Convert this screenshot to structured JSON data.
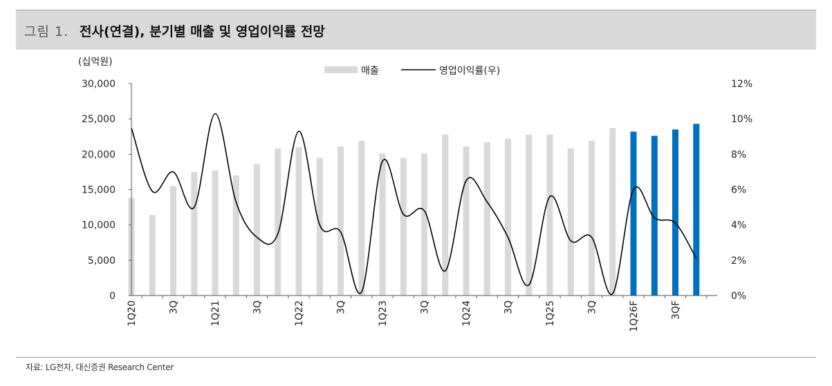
{
  "header": {
    "figure_number": "그림 1.",
    "title": "전사(연결), 분기별 매출 및 영업이익률 전망"
  },
  "source": "자료: LG전자, 대신증권 Research Center",
  "chart_data": {
    "type": "bar",
    "unit_left": "(십억원)",
    "legend": [
      {
        "name": "매출",
        "kind": "bar",
        "color": "#d9d9d9"
      },
      {
        "name": "영업이익률(우)",
        "kind": "line",
        "color": "#000000"
      }
    ],
    "x_tick_labels": [
      "1Q20",
      "3Q",
      "1Q21",
      "3Q",
      "1Q22",
      "3Q",
      "1Q23",
      "3Q",
      "1Q24",
      "3Q",
      "1Q25",
      "3Q",
      "1Q26F",
      "3QF"
    ],
    "x_tick_indices": [
      0,
      2,
      4,
      6,
      8,
      10,
      12,
      14,
      16,
      18,
      20,
      22,
      24,
      26
    ],
    "left_axis": {
      "min": 0,
      "max": 30000,
      "ticks": [
        "0",
        "5,000",
        "10,000",
        "15,000",
        "20,000",
        "25,000",
        "30,000"
      ]
    },
    "right_axis": {
      "min": 0,
      "max": 12,
      "ticks": [
        "0%",
        "2%",
        "4%",
        "6%",
        "8%",
        "10%",
        "12%"
      ]
    },
    "colors": {
      "actual_bar": "#d9d9d9",
      "forecast_bar": "#0070c0",
      "line": "#000000"
    },
    "forecast_start_index": 24,
    "series": [
      {
        "name": "매출",
        "axis": "left",
        "values": [
          13800,
          11400,
          15500,
          17500,
          17700,
          17000,
          18600,
          20800,
          21000,
          19500,
          21100,
          21900,
          20100,
          19500,
          20100,
          22800,
          21100,
          21700,
          22200,
          22800,
          22800,
          20800,
          21900,
          23700,
          23200,
          22600,
          23500,
          24300
        ]
      },
      {
        "name": "영업이익률(우)",
        "axis": "right",
        "values": [
          9.5,
          5.9,
          7.0,
          5.0,
          10.3,
          5.3,
          3.3,
          3.5,
          9.3,
          4.0,
          3.6,
          0.2,
          7.6,
          4.6,
          4.8,
          1.4,
          6.5,
          5.3,
          3.3,
          0.6,
          5.6,
          3.1,
          3.3,
          0.1,
          6.0,
          4.4,
          4.1,
          2.1
        ]
      }
    ]
  }
}
